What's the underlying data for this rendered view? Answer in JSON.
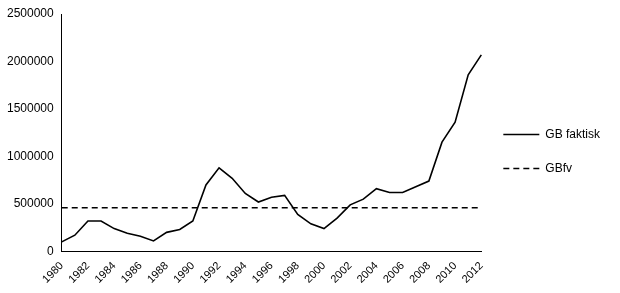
{
  "chart_data": {
    "type": "line",
    "categories": [
      "1980",
      null,
      "1982",
      null,
      "1984",
      null,
      "1986",
      null,
      "1988",
      null,
      "1990",
      null,
      "1992",
      null,
      "1994",
      null,
      "1996",
      null,
      "1998",
      null,
      "2000",
      null,
      "2002",
      null,
      "2004",
      null,
      "2006",
      null,
      "2008",
      null,
      "2010",
      null,
      "2012"
    ],
    "series": [
      {
        "name": "GB faktisk",
        "color": "#000000",
        "line_style": "solid",
        "marker": "none",
        "values": [
          100000,
          170000,
          320000,
          320000,
          240000,
          190000,
          160000,
          110000,
          200000,
          230000,
          320000,
          700000,
          880000,
          770000,
          610000,
          520000,
          570000,
          590000,
          390000,
          290000,
          240000,
          350000,
          490000,
          550000,
          660000,
          620000,
          620000,
          680000,
          740000,
          1150000,
          1360000,
          1860000,
          2070000
        ]
      },
      {
        "name": "GBfv",
        "color": "#000000",
        "line_style": "dashed",
        "marker": "none",
        "values": [
          460000,
          460000,
          460000,
          460000,
          460000,
          460000,
          460000,
          460000,
          460000,
          460000,
          460000,
          460000,
          460000,
          460000,
          460000,
          460000,
          460000,
          460000,
          460000,
          460000,
          460000,
          460000,
          460000,
          460000,
          460000,
          460000,
          460000,
          460000,
          460000,
          460000,
          460000,
          460000,
          460000
        ]
      }
    ],
    "ylim": [
      0,
      2500000
    ],
    "yticks": [
      0,
      500000,
      1000000,
      1500000,
      2000000,
      2500000
    ],
    "grid": false,
    "legend": "right"
  }
}
